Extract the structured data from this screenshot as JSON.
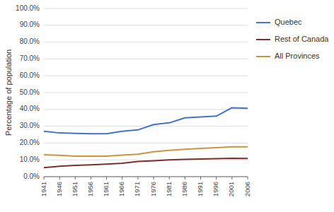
{
  "chart_data": {
    "type": "line",
    "y_label": "Percentage of population",
    "x": [
      1941,
      1946,
      1951,
      1956,
      1961,
      1966,
      1971,
      1976,
      1981,
      1986,
      1991,
      1996,
      2001,
      2006
    ],
    "xlim": [
      1941,
      2006
    ],
    "xticks": [
      1941,
      1946,
      1951,
      1956,
      1961,
      1966,
      1971,
      1976,
      1981,
      1986,
      1991,
      1996,
      2001,
      2006
    ],
    "ylim": [
      0.0,
      1.0
    ],
    "yticks": [
      {
        "value": 0.0,
        "label": "0.0%"
      },
      {
        "value": 0.1,
        "label": "10.0%"
      },
      {
        "value": 0.2,
        "label": "20.0%"
      },
      {
        "value": 0.3,
        "label": "30.0%"
      },
      {
        "value": 0.4,
        "label": "40.0%"
      },
      {
        "value": 0.5,
        "label": "50.0%"
      },
      {
        "value": 0.6,
        "label": "60.0%"
      },
      {
        "value": 0.7,
        "label": "70.0%"
      },
      {
        "value": 0.8,
        "label": "80.0%"
      },
      {
        "value": 0.9,
        "label": "90.0%"
      },
      {
        "value": 1.0,
        "label": "100.0%"
      }
    ],
    "series": [
      {
        "name": "Quebec",
        "color": "#4472C4",
        "values": [
          0.27,
          0.26,
          0.257,
          0.255,
          0.255,
          0.27,
          0.278,
          0.31,
          0.32,
          0.35,
          0.355,
          0.36,
          0.41,
          0.407
        ]
      },
      {
        "name": "Rest of Canada",
        "color": "#7B3030",
        "values": [
          0.054,
          0.062,
          0.067,
          0.07,
          0.075,
          0.08,
          0.09,
          0.095,
          0.1,
          0.103,
          0.105,
          0.107,
          0.109,
          0.108
        ]
      },
      {
        "name": "All Provinces",
        "color": "#C8963C",
        "values": [
          0.13,
          0.127,
          0.122,
          0.122,
          0.122,
          0.128,
          0.133,
          0.148,
          0.157,
          0.163,
          0.168,
          0.172,
          0.178,
          0.178
        ]
      }
    ],
    "grid": true,
    "legend": "right"
  }
}
